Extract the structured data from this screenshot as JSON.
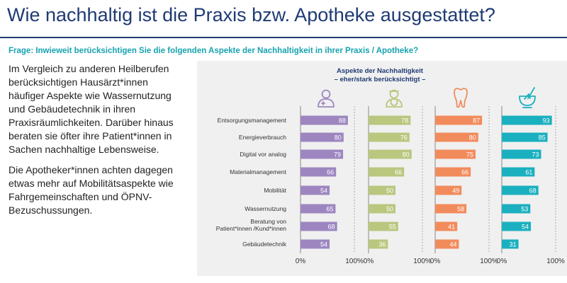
{
  "title": "Wie nachhaltig ist die Praxis bzw. Apotheke ausgestattet?",
  "question": "Frage: Inwieweit berücksichtigen Sie die folgenden Aspekte der Nachhaltigkeit in ihrer Praxis / Apotheke?",
  "paragraphs": [
    "Im Vergleich zu anderen Heilberufen berücksichtigen Hausärzt*innen häufiger Aspekte wie Wassernutzung und Gebäudetechnik in ihren Praxisräumlichkeiten. Darüber hinaus beraten sie öfter ihre Patient*innen in Sachen nachhaltige Lebensweise.",
    "Die Apotheker*innen achten dagegen etwas mehr auf Mobilitätsaspekte wie Fahrgemeinschaften und ÖPNV-Bezuschussungen."
  ],
  "chart_data": {
    "type": "bar",
    "title": "Aspekte der Nachhaltigkeit",
    "subtitle": "– eher/stark berücksichtigt –",
    "categories": [
      "Entsorgungsmanagement",
      "Energieverbrauch",
      "Digital vor analog",
      "Materialmanagement",
      "Mobilität",
      "Wassernutzung",
      "Beratung von Patient*innen /Kund*innen",
      "Gebäudetechnik"
    ],
    "xlim": [
      0,
      100
    ],
    "tick_labels": [
      "0%",
      "100%"
    ],
    "series": [
      {
        "icon": "doctor-icon",
        "color": "#9d86c0",
        "values": [
          88,
          80,
          79,
          66,
          54,
          65,
          68,
          54
        ]
      },
      {
        "icon": "physician-icon",
        "color": "#b9c77f",
        "values": [
          78,
          76,
          80,
          66,
          50,
          50,
          55,
          36
        ]
      },
      {
        "icon": "tooth-icon",
        "color": "#f28b5c",
        "values": [
          87,
          80,
          75,
          66,
          49,
          58,
          41,
          44
        ]
      },
      {
        "icon": "pharmacy-mortar-icon",
        "color": "#1bb0bf",
        "values": [
          93,
          85,
          73,
          61,
          68,
          53,
          54,
          31
        ]
      }
    ]
  }
}
